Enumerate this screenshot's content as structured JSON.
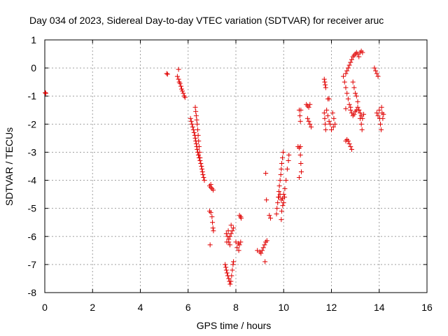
{
  "chart_data": {
    "type": "scatter",
    "title": "Day 034 of 2023, Sidereal Day-to-day VTEC variation (SDTVAR) for receiver aruc",
    "xlabel": "GPS time / hours",
    "ylabel": "SDTVAR / TECUs",
    "xlim": [
      0,
      16
    ],
    "ylim": [
      -8,
      1
    ],
    "xticks": [
      "0",
      "2",
      "4",
      "6",
      "8",
      "10",
      "12",
      "14",
      "16"
    ],
    "yticks": [
      "1",
      "0",
      "-1",
      "-2",
      "-3",
      "-4",
      "-5",
      "-6",
      "-7",
      "-8"
    ],
    "grid": true,
    "marker": "+",
    "color": "#e00000",
    "series": [
      {
        "points": [
          [
            0.02,
            -0.88
          ],
          [
            0.04,
            -0.9
          ],
          [
            5.1,
            -0.2
          ],
          [
            5.14,
            -0.22
          ],
          [
            5.55,
            -0.3
          ],
          [
            5.6,
            -0.4
          ],
          [
            5.63,
            -0.5
          ],
          [
            5.66,
            -0.55
          ],
          [
            5.7,
            -0.65
          ],
          [
            5.73,
            -0.75
          ],
          [
            5.76,
            -0.82
          ],
          [
            5.8,
            -0.9
          ],
          [
            5.84,
            -1.0
          ],
          [
            5.87,
            -1.05
          ],
          [
            5.6,
            -0.05
          ],
          [
            6.1,
            -1.8
          ],
          [
            6.13,
            -1.9
          ],
          [
            6.16,
            -2.0
          ],
          [
            6.19,
            -2.1
          ],
          [
            6.22,
            -2.2
          ],
          [
            6.25,
            -2.3
          ],
          [
            6.28,
            -2.4
          ],
          [
            6.3,
            -2.5
          ],
          [
            6.32,
            -2.6
          ],
          [
            6.34,
            -2.7
          ],
          [
            6.36,
            -2.8
          ],
          [
            6.38,
            -2.9
          ],
          [
            6.4,
            -3.0
          ],
          [
            6.43,
            -3.1
          ],
          [
            6.46,
            -3.2
          ],
          [
            6.5,
            -3.3
          ],
          [
            6.53,
            -3.4
          ],
          [
            6.56,
            -3.5
          ],
          [
            6.58,
            -3.6
          ],
          [
            6.6,
            -3.7
          ],
          [
            6.62,
            -3.8
          ],
          [
            6.65,
            -3.9
          ],
          [
            6.68,
            -4.0
          ],
          [
            6.3,
            -1.4
          ],
          [
            6.32,
            -1.55
          ],
          [
            6.34,
            -1.7
          ],
          [
            6.36,
            -1.85
          ],
          [
            6.38,
            -2.0
          ],
          [
            6.4,
            -2.2
          ],
          [
            6.42,
            -2.4
          ],
          [
            6.44,
            -2.6
          ],
          [
            6.46,
            -2.8
          ],
          [
            6.48,
            -3.0
          ],
          [
            6.5,
            -3.2
          ],
          [
            6.9,
            -4.2
          ],
          [
            6.95,
            -4.25
          ],
          [
            7.0,
            -4.3
          ],
          [
            7.05,
            -4.35
          ],
          [
            6.95,
            -4.15
          ],
          [
            6.9,
            -5.1
          ],
          [
            6.95,
            -5.15
          ],
          [
            7.0,
            -5.3
          ],
          [
            7.02,
            -5.5
          ],
          [
            7.04,
            -5.7
          ],
          [
            7.06,
            -5.8
          ],
          [
            6.92,
            -6.3
          ],
          [
            7.6,
            -5.9
          ],
          [
            7.65,
            -6.0
          ],
          [
            7.7,
            -6.1
          ],
          [
            7.75,
            -6.0
          ],
          [
            7.8,
            -5.9
          ],
          [
            7.85,
            -5.8
          ],
          [
            7.9,
            -5.7
          ],
          [
            7.7,
            -6.2
          ],
          [
            7.75,
            -6.3
          ],
          [
            7.62,
            -6.2
          ],
          [
            7.68,
            -5.8
          ],
          [
            7.8,
            -5.6
          ],
          [
            7.55,
            -7.0
          ],
          [
            7.58,
            -7.1
          ],
          [
            7.6,
            -7.2
          ],
          [
            7.63,
            -7.3
          ],
          [
            7.66,
            -7.4
          ],
          [
            7.7,
            -7.5
          ],
          [
            7.73,
            -7.6
          ],
          [
            7.76,
            -7.7
          ],
          [
            7.79,
            -7.6
          ],
          [
            7.82,
            -7.4
          ],
          [
            7.85,
            -7.2
          ],
          [
            7.88,
            -7.0
          ],
          [
            7.9,
            -6.9
          ],
          [
            8.0,
            -6.2
          ],
          [
            8.1,
            -6.25
          ],
          [
            8.2,
            -6.2
          ],
          [
            8.15,
            -6.3
          ],
          [
            8.05,
            -6.4
          ],
          [
            8.12,
            -6.5
          ],
          [
            8.15,
            -5.25
          ],
          [
            8.2,
            -5.3
          ],
          [
            8.22,
            -5.35
          ],
          [
            8.9,
            -6.5
          ],
          [
            9.0,
            -6.55
          ],
          [
            9.05,
            -6.6
          ],
          [
            9.1,
            -6.5
          ],
          [
            9.15,
            -6.4
          ],
          [
            9.2,
            -6.3
          ],
          [
            9.25,
            -6.2
          ],
          [
            9.3,
            -6.15
          ],
          [
            9.22,
            -6.9
          ],
          [
            9.25,
            -3.75
          ],
          [
            9.28,
            -4.7
          ],
          [
            9.7,
            -5.2
          ],
          [
            9.72,
            -5.0
          ],
          [
            9.75,
            -4.8
          ],
          [
            9.78,
            -4.6
          ],
          [
            9.8,
            -4.4
          ],
          [
            9.82,
            -4.2
          ],
          [
            9.85,
            -4.0
          ],
          [
            9.88,
            -3.8
          ],
          [
            9.9,
            -3.6
          ],
          [
            9.92,
            -3.4
          ],
          [
            9.95,
            -3.2
          ],
          [
            9.98,
            -3.0
          ],
          [
            9.8,
            -4.6
          ],
          [
            9.85,
            -4.5
          ],
          [
            9.9,
            -4.7
          ],
          [
            9.95,
            -4.65
          ],
          [
            10.0,
            -4.5
          ],
          [
            10.05,
            -4.3
          ],
          [
            10.1,
            -4.0
          ],
          [
            10.15,
            -3.6
          ],
          [
            10.2,
            -3.3
          ],
          [
            10.22,
            -3.1
          ],
          [
            9.9,
            -5.4
          ],
          [
            9.92,
            -5.1
          ],
          [
            9.96,
            -4.9
          ],
          [
            10.0,
            -4.8
          ],
          [
            10.04,
            -4.6
          ],
          [
            9.4,
            -5.25
          ],
          [
            9.45,
            -5.35
          ],
          [
            10.6,
            -2.8
          ],
          [
            10.65,
            -2.85
          ],
          [
            10.7,
            -2.8
          ],
          [
            10.7,
            -3.1
          ],
          [
            10.72,
            -3.4
          ],
          [
            10.74,
            -3.7
          ],
          [
            10.65,
            -3.9
          ],
          [
            10.65,
            -1.5
          ],
          [
            10.68,
            -1.7
          ],
          [
            10.7,
            -1.9
          ],
          [
            10.72,
            -1.5
          ],
          [
            10.95,
            -1.3
          ],
          [
            11.0,
            -1.35
          ],
          [
            11.05,
            -1.4
          ],
          [
            11.1,
            -1.3
          ],
          [
            11.0,
            -1.8
          ],
          [
            11.05,
            -1.9
          ],
          [
            11.1,
            -2.0
          ],
          [
            11.15,
            -2.1
          ],
          [
            11.7,
            -0.4
          ],
          [
            11.72,
            -0.5
          ],
          [
            11.74,
            -0.6
          ],
          [
            11.76,
            -0.7
          ],
          [
            11.85,
            -1.1
          ],
          [
            11.9,
            -1.1
          ],
          [
            11.7,
            -1.6
          ],
          [
            11.72,
            -1.8
          ],
          [
            11.74,
            -2.0
          ],
          [
            11.76,
            -2.2
          ],
          [
            11.8,
            -1.5
          ],
          [
            11.85,
            -1.7
          ],
          [
            11.9,
            -1.9
          ],
          [
            11.95,
            -2.0
          ],
          [
            12.05,
            -1.6
          ],
          [
            12.1,
            -1.8
          ],
          [
            12.15,
            -2.0
          ],
          [
            12.0,
            -2.2
          ],
          [
            12.08,
            -2.1
          ],
          [
            12.5,
            -0.3
          ],
          [
            12.55,
            -0.5
          ],
          [
            12.6,
            -0.7
          ],
          [
            12.65,
            -0.9
          ],
          [
            12.7,
            -1.1
          ],
          [
            12.75,
            -1.3
          ],
          [
            12.8,
            -1.4
          ],
          [
            12.6,
            -1.45
          ],
          [
            12.6,
            -0.2
          ],
          [
            12.65,
            -0.1
          ],
          [
            12.7,
            0.0
          ],
          [
            12.75,
            0.1
          ],
          [
            12.8,
            0.2
          ],
          [
            12.85,
            0.3
          ],
          [
            12.9,
            0.4
          ],
          [
            12.95,
            0.45
          ],
          [
            13.0,
            0.5
          ],
          [
            13.05,
            0.55
          ],
          [
            13.1,
            0.5
          ],
          [
            13.15,
            0.4
          ],
          [
            12.9,
            -0.5
          ],
          [
            12.95,
            -0.7
          ],
          [
            13.0,
            -0.9
          ],
          [
            13.05,
            -1.0
          ],
          [
            13.1,
            -1.2
          ],
          [
            13.15,
            -1.5
          ],
          [
            13.2,
            -1.8
          ],
          [
            13.25,
            -2.0
          ],
          [
            13.28,
            -2.2
          ],
          [
            12.8,
            -1.5
          ],
          [
            12.85,
            -1.6
          ],
          [
            12.9,
            -1.7
          ],
          [
            12.95,
            -1.65
          ],
          [
            13.0,
            -1.55
          ],
          [
            13.05,
            -1.5
          ],
          [
            12.6,
            -2.6
          ],
          [
            12.65,
            -2.55
          ],
          [
            12.7,
            -2.6
          ],
          [
            12.75,
            -2.7
          ],
          [
            12.8,
            -2.8
          ],
          [
            12.85,
            -2.9
          ],
          [
            13.1,
            -1.4
          ],
          [
            13.15,
            -1.5
          ],
          [
            13.2,
            -1.6
          ],
          [
            13.25,
            -1.7
          ],
          [
            13.3,
            -1.8
          ],
          [
            13.35,
            -1.65
          ],
          [
            13.2,
            0.55
          ],
          [
            13.25,
            0.6
          ],
          [
            13.3,
            0.55
          ],
          [
            13.8,
            0.0
          ],
          [
            13.85,
            -0.1
          ],
          [
            13.9,
            -0.2
          ],
          [
            13.95,
            -0.3
          ],
          [
            13.9,
            -1.6
          ],
          [
            13.95,
            -1.7
          ],
          [
            14.0,
            -1.5
          ],
          [
            14.02,
            -1.8
          ],
          [
            14.05,
            -2.0
          ],
          [
            14.08,
            -2.2
          ],
          [
            14.1,
            -1.4
          ],
          [
            14.12,
            -1.6
          ],
          [
            14.15,
            -1.8
          ],
          [
            14.18,
            -1.65
          ]
        ]
      }
    ]
  }
}
